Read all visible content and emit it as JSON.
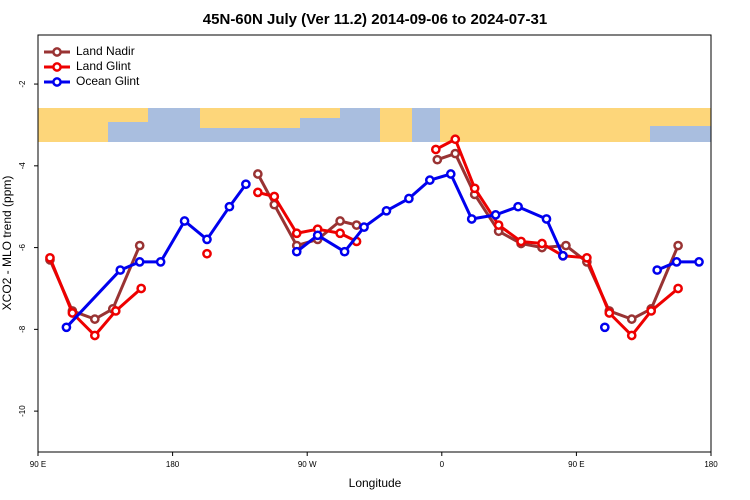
{
  "chart_data": {
    "type": "line",
    "title": "45N-60N July (Ver 11.2)   2014-09-06 to 2024-07-31",
    "xlabel": "Longitude",
    "ylabel": "XCO2 - MLO trend (ppm)",
    "xlim": [
      90,
      540
    ],
    "ylim": [
      -11,
      -0.8
    ],
    "xticks": [
      {
        "value": 90,
        "label": "90 E"
      },
      180,
      {
        "value": 270,
        "label": "90 W"
      },
      {
        "value": 360,
        "label": "0"
      },
      {
        "value": 450,
        "label": "90 E"
      },
      {
        "value": 540,
        "label": "180"
      }
    ],
    "yticks": [
      -10,
      -8,
      -6,
      -4,
      -2
    ],
    "legend": "upper left",
    "series": [
      {
        "name": "Land Nadir",
        "color": "#993333",
        "x": [
          98,
          113,
          128,
          140,
          158,
          null,
          237,
          248,
          263,
          277,
          292,
          303,
          null,
          357,
          369,
          382,
          398,
          413,
          427,
          443,
          457,
          472,
          487,
          500,
          518
        ],
        "values": [
          -6.3,
          -7.55,
          -7.75,
          -7.5,
          -5.95,
          null,
          -4.2,
          -4.95,
          -5.95,
          -5.8,
          -5.35,
          -5.45,
          null,
          -3.85,
          -3.7,
          -4.7,
          -5.6,
          -5.9,
          -6.0,
          -5.95,
          -6.35,
          -7.55,
          -7.75,
          -7.5,
          -5.95
        ]
      },
      {
        "name": "Land Glint",
        "color": "#ee0000",
        "x": [
          98,
          113,
          128,
          142,
          159,
          null,
          203,
          null,
          237,
          248,
          263,
          277,
          292,
          303,
          null,
          356,
          369,
          382,
          398,
          413,
          427,
          441,
          457,
          472,
          487,
          500,
          518
        ],
        "values": [
          -6.25,
          -7.6,
          -8.15,
          -7.55,
          -7.0,
          null,
          -6.15,
          null,
          -4.65,
          -4.75,
          -5.65,
          -5.55,
          -5.65,
          -5.85,
          null,
          -3.6,
          -3.35,
          -4.55,
          -5.45,
          -5.85,
          -5.9,
          -6.2,
          -6.25,
          -7.6,
          -8.15,
          -7.55,
          -7.0
        ]
      },
      {
        "name": "Ocean Glint",
        "color": "#0000ee",
        "x": [
          109,
          145,
          158,
          172,
          188,
          203,
          218,
          229,
          null,
          263,
          277,
          295,
          308,
          323,
          338,
          352,
          366,
          380,
          396,
          411,
          430,
          441,
          null,
          469,
          null,
          504,
          517,
          532
        ],
        "values": [
          -7.95,
          -6.55,
          -6.35,
          -6.35,
          -5.35,
          -5.8,
          -5.0,
          -4.45,
          null,
          -6.1,
          -5.7,
          -6.1,
          -5.5,
          -5.1,
          -4.8,
          -4.35,
          -4.2,
          -5.3,
          -5.2,
          -5.0,
          -5.3,
          -6.2,
          null,
          -7.95,
          null,
          -6.55,
          -6.35,
          -6.35
        ]
      }
    ]
  }
}
